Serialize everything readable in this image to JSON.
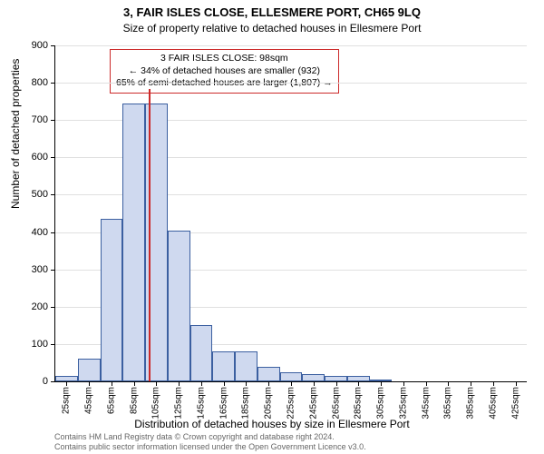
{
  "title_line1": "3, FAIR ISLES CLOSE, ELLESMERE PORT, CH65 9LQ",
  "title_line2": "Size of property relative to detached houses in Ellesmere Port",
  "y_axis_label": "Number of detached properties",
  "x_axis_label": "Distribution of detached houses by size in Ellesmere Port",
  "footer_line1": "Contains HM Land Registry data © Crown copyright and database right 2024.",
  "footer_line2": "Contains public sector information licensed under the Open Government Licence v3.0.",
  "annotation": {
    "line1": "3 FAIR ISLES CLOSE: 98sqm",
    "line2": "← 34% of detached houses are smaller (932)",
    "line3": "65% of semi-detached houses are larger (1,807) →"
  },
  "chart": {
    "type": "histogram",
    "background_color": "#ffffff",
    "grid_color": "#e0e0e0",
    "axis_color": "#000000",
    "bar_fill": "#cfd9ef",
    "bar_stroke": "#3b5fa0",
    "marker_color": "#cc2a2a",
    "marker_x": 98,
    "xlim": [
      15,
      435
    ],
    "ylim": [
      0,
      900
    ],
    "ytick_step": 100,
    "x_ticks": [
      25,
      45,
      65,
      85,
      105,
      125,
      145,
      165,
      185,
      205,
      225,
      245,
      265,
      285,
      305,
      325,
      345,
      365,
      385,
      405,
      425
    ],
    "x_tick_suffix": "sqm",
    "bars": [
      {
        "x": 25,
        "v": 15
      },
      {
        "x": 45,
        "v": 60
      },
      {
        "x": 65,
        "v": 435
      },
      {
        "x": 85,
        "v": 745
      },
      {
        "x": 105,
        "v": 745
      },
      {
        "x": 125,
        "v": 405
      },
      {
        "x": 145,
        "v": 150
      },
      {
        "x": 165,
        "v": 80
      },
      {
        "x": 185,
        "v": 80
      },
      {
        "x": 205,
        "v": 40
      },
      {
        "x": 225,
        "v": 25
      },
      {
        "x": 245,
        "v": 20
      },
      {
        "x": 265,
        "v": 15
      },
      {
        "x": 285,
        "v": 15
      },
      {
        "x": 305,
        "v": 5
      },
      {
        "x": 325,
        "v": 0
      },
      {
        "x": 345,
        "v": 0
      },
      {
        "x": 365,
        "v": 0
      },
      {
        "x": 385,
        "v": 0
      },
      {
        "x": 405,
        "v": 0
      },
      {
        "x": 425,
        "v": 0
      }
    ],
    "bar_width_units": 20,
    "title_fontsize": 13,
    "label_fontsize": 12,
    "tick_fontsize": 11
  }
}
